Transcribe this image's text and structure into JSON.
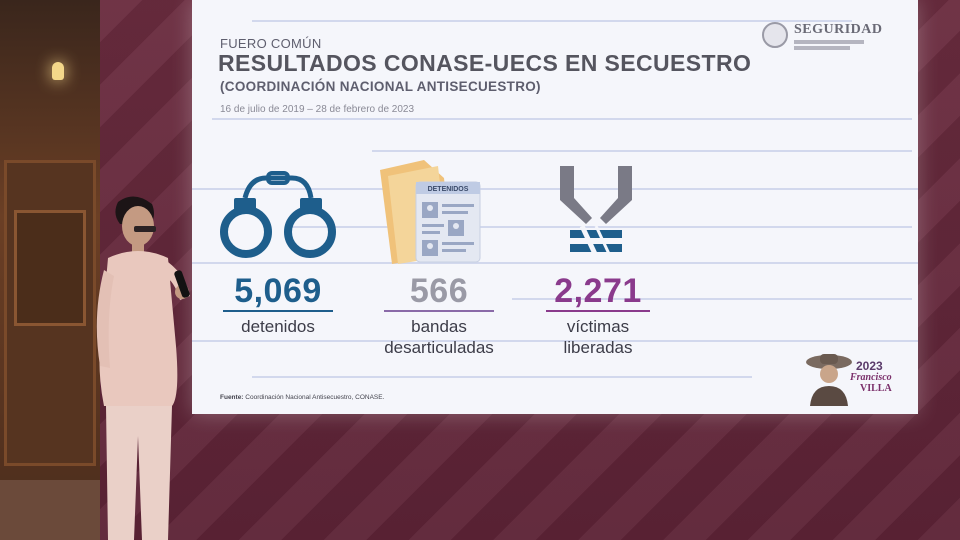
{
  "slide": {
    "kicker": "FUERO COMÚN",
    "title": "RESULTADOS CONASE-UECS EN SECUESTRO",
    "subtitle": "(COORDINACIÓN NACIONAL ANTISECUESTRO)",
    "date_range": "16 de julio de 2019 – 28 de febrero de 2023",
    "logo_text": "SEGURIDAD",
    "folder_label": "DETENIDOS",
    "source_label": "Fuente:",
    "source_text": "Coordinación Nacional Antisecuestro, CONASE.",
    "badge_year": "2023",
    "badge_name_1": "Francisco",
    "badge_name_2": "VILLA"
  },
  "stats": [
    {
      "value": "5,069",
      "label_1": "detenidos",
      "label_2": "",
      "icon": "handcuffs-icon",
      "color": "#1e5e8c"
    },
    {
      "value": "566",
      "label_1": "bandas",
      "label_2": "desarticuladas",
      "icon": "folder-icon",
      "color": "#9a9aa6"
    },
    {
      "value": "2,271",
      "label_1": "víctimas",
      "label_2": "liberadas",
      "icon": "freed-hands-icon",
      "color": "#8a3a8c"
    }
  ],
  "colors": {
    "screen_bg": "#f5f6fb",
    "wall": "#6a2c3f",
    "title_text": "#55555f"
  }
}
